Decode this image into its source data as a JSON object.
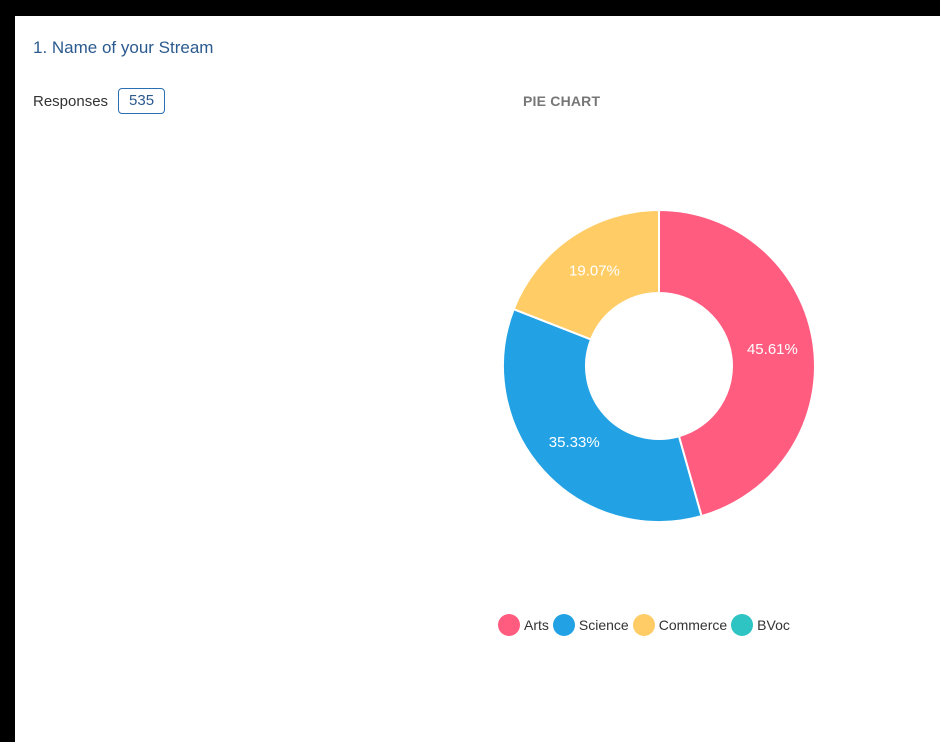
{
  "question": {
    "title": "1. Name of your Stream"
  },
  "responses": {
    "label": "Responses",
    "count": "535"
  },
  "chart_data": {
    "type": "pie",
    "variant": "doughnut",
    "title": "PIE CHART",
    "categories": [
      "Arts",
      "Science",
      "Commerce",
      "BVoc"
    ],
    "values": [
      45.61,
      35.33,
      19.07,
      0
    ],
    "value_labels": [
      "45.61%",
      "35.33%",
      "19.07%",
      ""
    ],
    "colors": [
      "#ff5c80",
      "#22a2e4",
      "#ffcc66",
      "#2ec4c4"
    ],
    "legend_position": "bottom",
    "start_angle": "top, clockwise"
  }
}
